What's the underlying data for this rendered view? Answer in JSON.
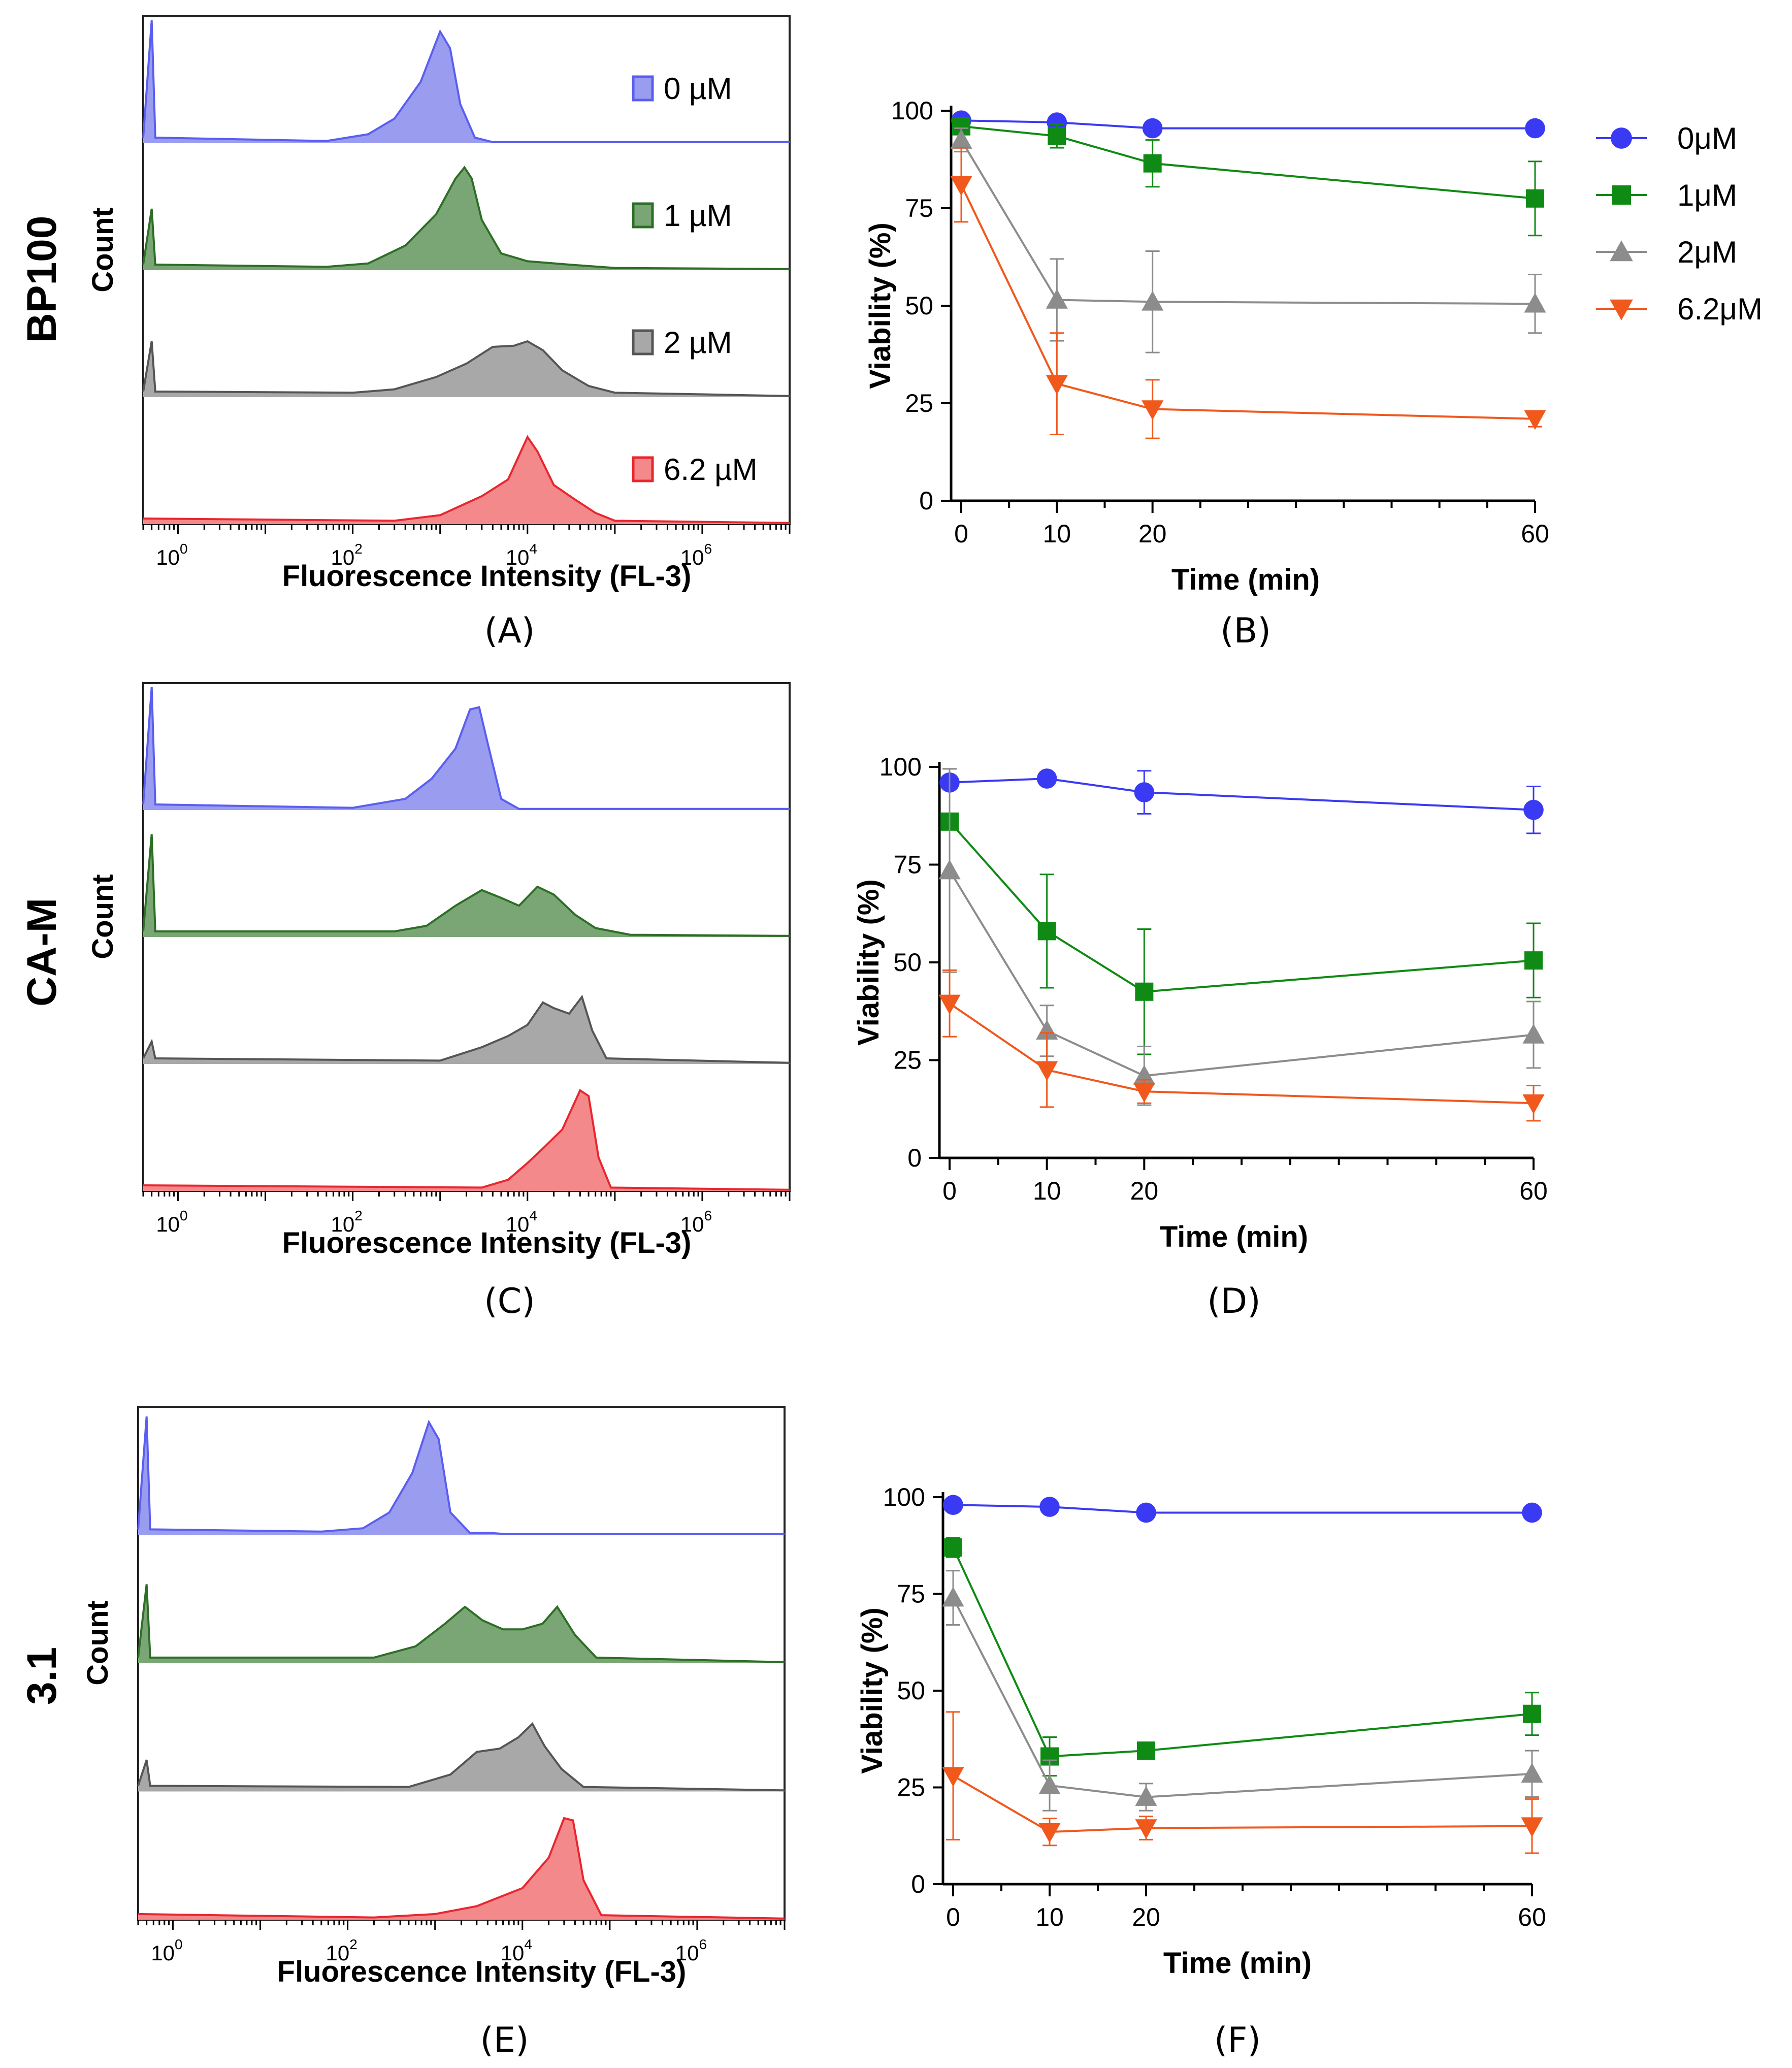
{
  "rows": [
    {
      "label": "BP100",
      "histogram_panel": "(A)",
      "viability_panel": "(B)"
    },
    {
      "label": "CA-M",
      "histogram_panel": "(C)",
      "viability_panel": "(D)"
    },
    {
      "label": "3.1",
      "histogram_panel": "(E)",
      "viability_panel": "(F)"
    }
  ],
  "histogram_axes": {
    "xlabel": "Fluorescence Intensity (FL-3)",
    "ylabel": "Count",
    "x_scale": "log",
    "xlim": [
      0.4,
      10000000
    ],
    "tick_labels": [
      {
        "base": "10",
        "exp": "0",
        "value": 1
      },
      {
        "base": "10",
        "exp": "2",
        "value": 100
      },
      {
        "base": "10",
        "exp": "4",
        "value": 10000
      },
      {
        "base": "10",
        "exp": "6",
        "value": 1000000
      }
    ]
  },
  "histogram_legend": {
    "entries": [
      {
        "label": "0 µM",
        "color": "#5a5ef0",
        "fill": "#9a9cf0"
      },
      {
        "label": "1 µM",
        "color": "#2d6e26",
        "fill": "#79a674"
      },
      {
        "label": "2 µM",
        "color": "#555555",
        "fill": "#a8a8a8"
      },
      {
        "label": "6.2 µM",
        "color": "#e8262e",
        "fill": "#f4898c"
      }
    ]
  },
  "viability_legend": {
    "entries": [
      {
        "label": "0μM",
        "marker": "circle",
        "color": "#3a3af4"
      },
      {
        "label": "1μM",
        "marker": "square",
        "color": "#0f8a14"
      },
      {
        "label": "2μM",
        "marker": "triangle-up",
        "color": "#8c8c8c"
      },
      {
        "label": "6.2μM",
        "marker": "triangle-down",
        "color": "#f0581c"
      }
    ]
  },
  "viability_axes": {
    "xlabel": "Time (min)",
    "ylabel": "Viability (%)",
    "xlim": [
      0,
      60
    ],
    "ylim": [
      0,
      100
    ],
    "xticks": [
      0,
      10,
      20,
      60
    ],
    "yticks": [
      0,
      25,
      50,
      75,
      100
    ]
  },
  "chart_data": [
    {
      "type": "histogram",
      "panel": "(A)",
      "title": "BP100",
      "x_scale": "log",
      "xlabel": "Fluorescence Intensity (FL-3)",
      "ylabel": "Count",
      "series": [
        {
          "name": "0 µM",
          "points": [
            [
              0.4,
              0.05
            ],
            [
              0.5,
              1.1
            ],
            [
              0.55,
              0.05
            ],
            [
              50,
              0.02
            ],
            [
              150,
              0.08
            ],
            [
              300,
              0.22
            ],
            [
              600,
              0.55
            ],
            [
              1000,
              1.0
            ],
            [
              1300,
              0.85
            ],
            [
              1700,
              0.35
            ],
            [
              2500,
              0.05
            ],
            [
              4000,
              0.01
            ],
            [
              8000,
              0.01
            ],
            [
              10000000,
              0.01
            ]
          ]
        },
        {
          "name": "1 µM",
          "points": [
            [
              0.4,
              0.05
            ],
            [
              0.5,
              0.55
            ],
            [
              0.55,
              0.05
            ],
            [
              50,
              0.03
            ],
            [
              150,
              0.06
            ],
            [
              400,
              0.22
            ],
            [
              900,
              0.5
            ],
            [
              1500,
              0.82
            ],
            [
              1900,
              0.92
            ],
            [
              2300,
              0.82
            ],
            [
              3000,
              0.45
            ],
            [
              5000,
              0.15
            ],
            [
              10000,
              0.08
            ],
            [
              30000,
              0.05
            ],
            [
              100000,
              0.02
            ],
            [
              10000000,
              0.01
            ]
          ]
        },
        {
          "name": "2 µM",
          "points": [
            [
              0.4,
              0.05
            ],
            [
              0.5,
              0.5
            ],
            [
              0.55,
              0.05
            ],
            [
              100,
              0.04
            ],
            [
              300,
              0.07
            ],
            [
              900,
              0.18
            ],
            [
              2000,
              0.3
            ],
            [
              4000,
              0.45
            ],
            [
              7000,
              0.46
            ],
            [
              10000,
              0.5
            ],
            [
              15000,
              0.42
            ],
            [
              25000,
              0.24
            ],
            [
              50000,
              0.1
            ],
            [
              100000,
              0.04
            ],
            [
              10000000,
              0.01
            ]
          ]
        },
        {
          "name": "6.2 µM",
          "points": [
            [
              0.4,
              0.05
            ],
            [
              300,
              0.03
            ],
            [
              1000,
              0.08
            ],
            [
              3000,
              0.25
            ],
            [
              6000,
              0.4
            ],
            [
              10000,
              0.78
            ],
            [
              13000,
              0.65
            ],
            [
              20000,
              0.35
            ],
            [
              35000,
              0.22
            ],
            [
              60000,
              0.1
            ],
            [
              100000,
              0.03
            ],
            [
              10000000,
              0.01
            ]
          ]
        }
      ]
    },
    {
      "type": "line",
      "panel": "(B)",
      "title": "BP100",
      "xlabel": "Time (min)",
      "ylabel": "Viability (%)",
      "x": [
        0,
        10,
        20,
        60
      ],
      "ylim": [
        0,
        100
      ],
      "series": [
        {
          "name": "0μM",
          "values": [
            97.5,
            97,
            95.5,
            95.5
          ],
          "errors": [
            1,
            1,
            0.8,
            0.8
          ]
        },
        {
          "name": "1μM",
          "values": [
            96,
            93.5,
            86.5,
            77.5
          ],
          "errors": [
            2,
            3,
            6,
            9.5
          ]
        },
        {
          "name": "2μM",
          "values": [
            92.5,
            51.5,
            51,
            50.5
          ],
          "errors": [
            3,
            10.5,
            13,
            7.5
          ]
        },
        {
          "name": "6.2μM",
          "values": [
            81,
            30,
            23.5,
            21
          ],
          "errors": [
            9.5,
            13,
            7.5,
            2
          ]
        }
      ]
    },
    {
      "type": "histogram",
      "panel": "(C)",
      "title": "CA-M",
      "x_scale": "log",
      "xlabel": "Fluorescence Intensity (FL-3)",
      "ylabel": "Count",
      "series": [
        {
          "name": "0 µM",
          "points": [
            [
              0.4,
              0.05
            ],
            [
              0.5,
              1.1
            ],
            [
              0.55,
              0.05
            ],
            [
              100,
              0.02
            ],
            [
              400,
              0.1
            ],
            [
              800,
              0.28
            ],
            [
              1500,
              0.55
            ],
            [
              2200,
              0.9
            ],
            [
              2800,
              0.92
            ],
            [
              3500,
              0.6
            ],
            [
              5000,
              0.1
            ],
            [
              8000,
              0.01
            ],
            [
              10000000,
              0.01
            ]
          ]
        },
        {
          "name": "1 µM",
          "points": [
            [
              0.4,
              0.05
            ],
            [
              0.5,
              0.92
            ],
            [
              0.55,
              0.05
            ],
            [
              300,
              0.05
            ],
            [
              700,
              0.1
            ],
            [
              1500,
              0.28
            ],
            [
              3000,
              0.42
            ],
            [
              5000,
              0.35
            ],
            [
              8000,
              0.28
            ],
            [
              13000,
              0.45
            ],
            [
              20000,
              0.38
            ],
            [
              35000,
              0.2
            ],
            [
              60000,
              0.08
            ],
            [
              150000,
              0.02
            ],
            [
              10000000,
              0.01
            ]
          ]
        },
        {
          "name": "2 µM",
          "points": [
            [
              0.4,
              0.05
            ],
            [
              0.5,
              0.2
            ],
            [
              0.55,
              0.05
            ],
            [
              1000,
              0.03
            ],
            [
              3000,
              0.15
            ],
            [
              6000,
              0.25
            ],
            [
              10000,
              0.35
            ],
            [
              15000,
              0.55
            ],
            [
              20000,
              0.5
            ],
            [
              30000,
              0.45
            ],
            [
              42000,
              0.6
            ],
            [
              55000,
              0.3
            ],
            [
              80000,
              0.05
            ],
            [
              10000000,
              0.01
            ]
          ]
        },
        {
          "name": "6.2 µM",
          "points": [
            [
              0.4,
              0.05
            ],
            [
              3000,
              0.03
            ],
            [
              6000,
              0.1
            ],
            [
              10000,
              0.25
            ],
            [
              15000,
              0.38
            ],
            [
              25000,
              0.55
            ],
            [
              40000,
              0.9
            ],
            [
              50000,
              0.85
            ],
            [
              65000,
              0.3
            ],
            [
              90000,
              0.03
            ],
            [
              10000000,
              0.01
            ]
          ]
        }
      ]
    },
    {
      "type": "line",
      "panel": "(D)",
      "title": "CA-M",
      "xlabel": "Time (min)",
      "ylabel": "Viability (%)",
      "x": [
        0,
        10,
        20,
        60
      ],
      "ylim": [
        0,
        100
      ],
      "series": [
        {
          "name": "0μM",
          "values": [
            96,
            97,
            93.5,
            89
          ],
          "errors": [
            1,
            1,
            5.5,
            6
          ]
        },
        {
          "name": "1μM",
          "values": [
            86,
            58,
            42.5,
            50.5
          ],
          "errors": [
            13.5,
            14.5,
            16,
            9.5
          ]
        },
        {
          "name": "2μM",
          "values": [
            73.5,
            32.5,
            21,
            31.5
          ],
          "errors": [
            26,
            6.5,
            7.5,
            8.5
          ]
        },
        {
          "name": "6.2μM",
          "values": [
            39.5,
            22.5,
            17,
            14
          ],
          "errors": [
            8.5,
            9.5,
            3,
            4.5
          ]
        }
      ]
    },
    {
      "type": "histogram",
      "panel": "(E)",
      "title": "3.1",
      "x_scale": "log",
      "xlabel": "Fluorescence Intensity (FL-3)",
      "ylabel": "Count",
      "series": [
        {
          "name": "0 µM",
          "points": [
            [
              0.4,
              0.05
            ],
            [
              0.5,
              1.05
            ],
            [
              0.55,
              0.05
            ],
            [
              50,
              0.03
            ],
            [
              150,
              0.06
            ],
            [
              300,
              0.2
            ],
            [
              550,
              0.55
            ],
            [
              850,
              1.0
            ],
            [
              1100,
              0.85
            ],
            [
              1500,
              0.2
            ],
            [
              2500,
              0.02
            ],
            [
              4000,
              0.02
            ],
            [
              6000,
              0.01
            ],
            [
              10000000,
              0.01
            ]
          ]
        },
        {
          "name": "1 µM",
          "points": [
            [
              0.4,
              0.05
            ],
            [
              0.5,
              0.7
            ],
            [
              0.55,
              0.05
            ],
            [
              200,
              0.05
            ],
            [
              600,
              0.15
            ],
            [
              1300,
              0.35
            ],
            [
              2200,
              0.5
            ],
            [
              3500,
              0.38
            ],
            [
              6000,
              0.3
            ],
            [
              10000,
              0.3
            ],
            [
              17000,
              0.35
            ],
            [
              25000,
              0.5
            ],
            [
              40000,
              0.25
            ],
            [
              70000,
              0.05
            ],
            [
              10000000,
              0.01
            ]
          ]
        },
        {
          "name": "2 µM",
          "points": [
            [
              0.4,
              0.05
            ],
            [
              0.5,
              0.28
            ],
            [
              0.55,
              0.05
            ],
            [
              500,
              0.04
            ],
            [
              1500,
              0.15
            ],
            [
              3000,
              0.35
            ],
            [
              5500,
              0.38
            ],
            [
              9000,
              0.48
            ],
            [
              13000,
              0.6
            ],
            [
              18000,
              0.4
            ],
            [
              28000,
              0.2
            ],
            [
              50000,
              0.04
            ],
            [
              10000000,
              0.01
            ]
          ]
        },
        {
          "name": "6.2 µM",
          "points": [
            [
              0.4,
              0.05
            ],
            [
              200,
              0.02
            ],
            [
              1000,
              0.05
            ],
            [
              3000,
              0.12
            ],
            [
              10000,
              0.28
            ],
            [
              20000,
              0.55
            ],
            [
              30000,
              0.9
            ],
            [
              38000,
              0.88
            ],
            [
              50000,
              0.35
            ],
            [
              80000,
              0.04
            ],
            [
              10000000,
              0.01
            ]
          ]
        }
      ]
    },
    {
      "type": "line",
      "panel": "(F)",
      "title": "3.1",
      "xlabel": "Time (min)",
      "ylabel": "Viability (%)",
      "x": [
        0,
        10,
        20,
        60
      ],
      "ylim": [
        0,
        100
      ],
      "series": [
        {
          "name": "0μM",
          "values": [
            98,
            97.5,
            96,
            96
          ],
          "errors": [
            0.8,
            0.8,
            0.8,
            0.8
          ]
        },
        {
          "name": "1μM",
          "values": [
            87,
            33,
            34.5,
            44
          ],
          "errors": [
            2.5,
            5,
            1,
            5.5
          ]
        },
        {
          "name": "2μM",
          "values": [
            74,
            25.5,
            22.5,
            28.5
          ],
          "errors": [
            7,
            6.5,
            3.5,
            6
          ]
        },
        {
          "name": "6.2μM",
          "values": [
            28,
            13.5,
            14.5,
            15
          ],
          "errors": [
            16.5,
            3.5,
            3,
            7
          ]
        }
      ]
    }
  ]
}
